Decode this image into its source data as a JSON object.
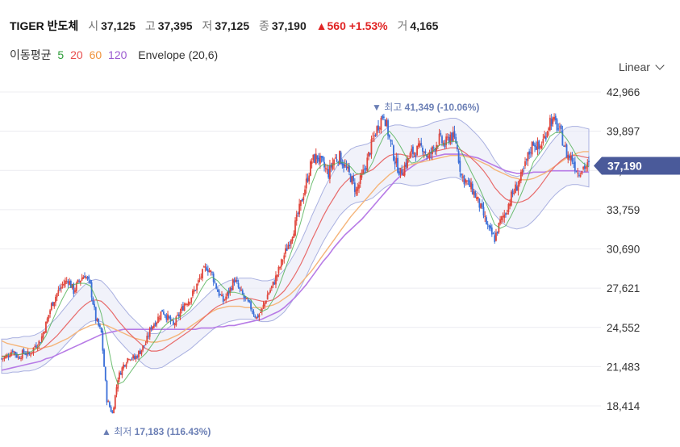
{
  "header": {
    "title": "TIGER 반도체",
    "open_label": "시",
    "open": "37,125",
    "high_label": "고",
    "high": "37,395",
    "low_label": "저",
    "low": "37,125",
    "close_label": "종",
    "close": "37,190",
    "change": "▲560",
    "change_pct": "+1.53%",
    "volume_label": "거",
    "volume": "4,165"
  },
  "legend": {
    "ma_label": "이동평균",
    "ma5": "5",
    "ma20": "20",
    "ma60": "60",
    "ma120": "120",
    "envelope": "Envelope (20,6)",
    "colors": {
      "ma5": "#2e9e3a",
      "ma20": "#e84c4c",
      "ma60": "#f0923a",
      "ma120": "#9b59d0"
    }
  },
  "scale_selector": {
    "label": "Linear"
  },
  "chart_data": {
    "type": "candlestick",
    "yticks": [
      "42,966",
      "39,897",
      "36,828",
      "33,759",
      "30,690",
      "27,621",
      "24,552",
      "21,483",
      "18,414"
    ],
    "ylim": [
      17183,
      42966
    ],
    "current_price": "37,190",
    "current_value": 37190,
    "max_annotation": {
      "label": "최고",
      "value": "41,349",
      "pct": "(-10.06%)",
      "marker": "▼"
    },
    "min_annotation": {
      "label": "최저",
      "value": "17,183",
      "pct": "(116.43%)",
      "marker": "▲"
    },
    "price_path": [
      22100,
      22300,
      22800,
      22200,
      22600,
      22400,
      23100,
      23500,
      24800,
      26300,
      27200,
      27900,
      28300,
      27400,
      28200,
      28700,
      27800,
      25200,
      24100,
      18900,
      17800,
      20600,
      21600,
      22300,
      22100,
      22700,
      23300,
      24600,
      25100,
      25900,
      25300,
      24700,
      25500,
      26400,
      26800,
      27600,
      28600,
      29300,
      28700,
      27400,
      26600,
      27300,
      28300,
      27400,
      26700,
      26100,
      25300,
      25900,
      27100,
      27900,
      29000,
      30200,
      31300,
      32600,
      34200,
      35900,
      37600,
      37900,
      37200,
      36600,
      37700,
      37900,
      37100,
      36300,
      35200,
      36300,
      37600,
      39200,
      40400,
      41300,
      39300,
      37600,
      36600,
      37400,
      38200,
      38400,
      38700,
      37800,
      38600,
      39300,
      38800,
      39600,
      39100,
      36400,
      35900,
      35300,
      34400,
      33300,
      32100,
      31500,
      32800,
      33600,
      34800,
      35600,
      36500,
      37900,
      39100,
      38500,
      39400,
      40800,
      40500,
      39600,
      38100,
      37700,
      36700,
      37100,
      37190
    ],
    "ma5_path": [
      22200,
      22400,
      22500,
      22400,
      22500,
      22600,
      22800,
      23200,
      23900,
      24900,
      25900,
      26800,
      27600,
      27900,
      28000,
      28000,
      27800,
      26900,
      25600,
      23600,
      21400,
      20100,
      20300,
      20900,
      21500,
      22100,
      22500,
      23100,
      23700,
      24500,
      24900,
      25200,
      25300,
      25600,
      26000,
      26700,
      27500,
      28200,
      28500,
      28200,
      27700,
      27300,
      27300,
      27200,
      27000,
      26700,
      26100,
      25800,
      26000,
      26700,
      27700,
      28900,
      30100,
      31300,
      32800,
      34400,
      35800,
      36900,
      37300,
      37200,
      37300,
      37500,
      37400,
      37100,
      36600,
      36500,
      36700,
      37500,
      38600,
      39500,
      39900,
      39400,
      38700,
      37900,
      37400,
      37500,
      37900,
      38100,
      38400,
      38800,
      38900,
      39100,
      39100,
      38300,
      37400,
      36500,
      35700,
      34700,
      33700,
      32600,
      32300,
      32500,
      33300,
      34200,
      35200,
      36300,
      37500,
      38100,
      38700,
      39500,
      39800,
      39800,
      39300,
      38600,
      37800,
      37400,
      37100
    ],
    "ma20_path": [
      22300,
      22300,
      22400,
      22400,
      22500,
      22500,
      22600,
      22800,
      23100,
      23500,
      23900,
      24400,
      24900,
      25400,
      25900,
      26300,
      26600,
      26700,
      26600,
      26200,
      25700,
      25100,
      24600,
      24100,
      23700,
      23300,
      22900,
      22700,
      22700,
      22800,
      23100,
      23400,
      23700,
      24000,
      24300,
      24700,
      25100,
      25500,
      25900,
      26200,
      26400,
      26600,
      26700,
      26800,
      26800,
      26800,
      26700,
      26600,
      26600,
      26700,
      27000,
      27400,
      28000,
      28700,
      29500,
      30400,
      31400,
      32300,
      33200,
      34000,
      34700,
      35400,
      35900,
      36300,
      36500,
      36600,
      36700,
      36900,
      37300,
      37700,
      38000,
      38100,
      38100,
      38000,
      37900,
      37900,
      38000,
      38100,
      38300,
      38400,
      38500,
      38600,
      38600,
      38400,
      38100,
      37700,
      37300,
      36800,
      36200,
      35500,
      35000,
      34600,
      34400,
      34300,
      34400,
      34600,
      35000,
      35500,
      36100,
      36700,
      37200,
      37600,
      37900,
      38000,
      38000,
      37900,
      37800
    ],
    "ma60_path": [
      23500,
      23300,
      23200,
      23100,
      23000,
      22900,
      22900,
      22900,
      23000,
      23100,
      23300,
      23500,
      23700,
      24000,
      24300,
      24500,
      24700,
      24800,
      24800,
      24700,
      24500,
      24300,
      24100,
      23900,
      23700,
      23600,
      23500,
      23400,
      23400,
      23500,
      23600,
      23800,
      24000,
      24300,
      24600,
      24900,
      25200,
      25500,
      25800,
      26000,
      26100,
      26200,
      26200,
      26200,
      26100,
      26100,
      26100,
      26100,
      26200,
      26300,
      26500,
      26800,
      27100,
      27500,
      28000,
      28500,
      29000,
      29600,
      30200,
      30800,
      31400,
      32000,
      32600,
      33200,
      33700,
      34200,
      34700,
      35200,
      35700,
      36100,
      36500,
      36800,
      37000,
      37200,
      37300,
      37400,
      37500,
      37600,
      37700,
      37800,
      37900,
      38000,
      38000,
      38000,
      37900,
      37800,
      37600,
      37400,
      37200,
      36900,
      36700,
      36500,
      36300,
      36200,
      36100,
      36100,
      36200,
      36400,
      36600,
      36900,
      37200,
      37500,
      37800,
      38000,
      38200,
      38300,
      38300
    ],
    "ma120_path": [
      21200,
      21300,
      21400,
      21500,
      21600,
      21700,
      21800,
      21900,
      22100,
      22200,
      22400,
      22600,
      22800,
      23000,
      23200,
      23400,
      23600,
      23800,
      24000,
      24100,
      24200,
      24300,
      24400,
      24400,
      24400,
      24400,
      24400,
      24400,
      24400,
      24400,
      24400,
      24400,
      24400,
      24400,
      24400,
      24400,
      24500,
      24500,
      24500,
      24600,
      24600,
      24700,
      24700,
      24800,
      24900,
      25000,
      25100,
      25200,
      25400,
      25600,
      25800,
      26100,
      26500,
      26900,
      27400,
      27900,
      28500,
      29100,
      29700,
      30200,
      30800,
      31300,
      31800,
      32200,
      32600,
      33000,
      33500,
      34000,
      34500,
      35000,
      35500,
      36000,
      36400,
      36800,
      37100,
      37400,
      37600,
      37800,
      37900,
      38000,
      38100,
      38100,
      38100,
      38100,
      38000,
      37900,
      37800,
      37600,
      37400,
      37200,
      37000,
      36800,
      36700,
      36600,
      36600,
      36600,
      36700,
      36700,
      36700,
      36800,
      36800,
      36800,
      36800,
      36800,
      36800,
      36700,
      36700
    ]
  }
}
